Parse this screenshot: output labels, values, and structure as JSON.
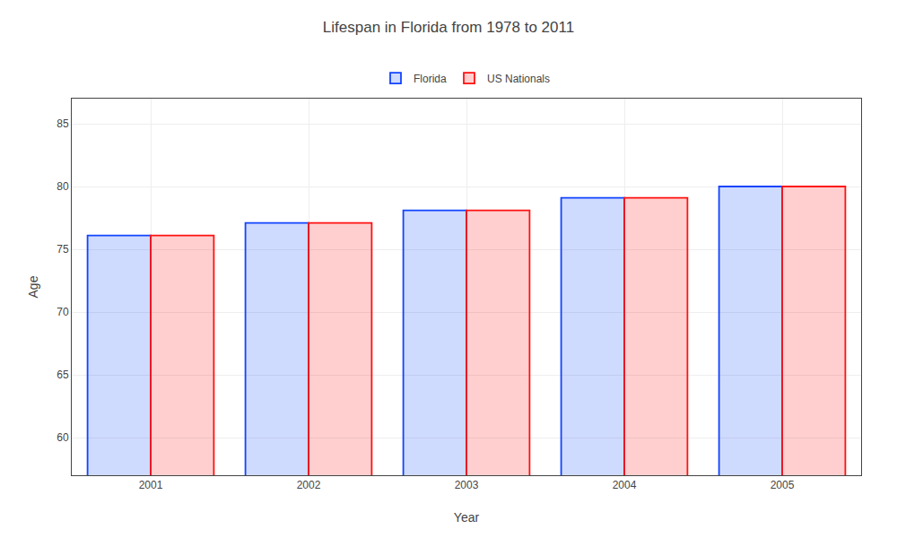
{
  "chart_data": {
    "type": "bar",
    "title": "Lifespan in Florida from 1978 to 2011",
    "xlabel": "Year",
    "ylabel": "Age",
    "categories": [
      "2001",
      "2002",
      "2003",
      "2004",
      "2005"
    ],
    "series": [
      {
        "name": "Florida",
        "color": "#1144ff",
        "values": [
          76.1,
          77.1,
          78.1,
          79.1,
          80.0
        ]
      },
      {
        "name": "US Nationals",
        "color": "#ff1111",
        "values": [
          76.1,
          77.1,
          78.1,
          79.1,
          80.0
        ]
      }
    ],
    "ylim": [
      57,
      87
    ],
    "yticks": [
      60,
      65,
      70,
      75,
      80,
      85
    ],
    "grid": true,
    "legend": "top"
  }
}
